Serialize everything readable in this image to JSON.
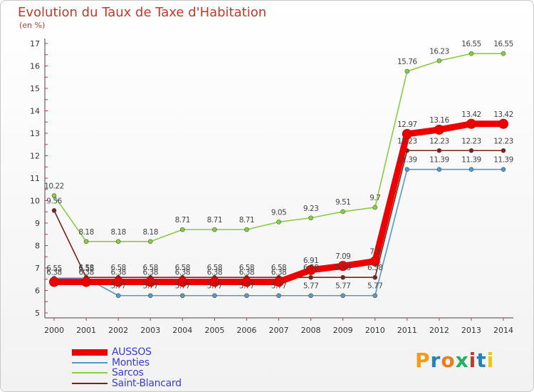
{
  "title": "Evolution du Taux de Taxe d'Habitation",
  "unit_label": "(en %)",
  "logo": {
    "text": "Proxiti",
    "letters": [
      "P",
      "r",
      "o",
      "x",
      "i",
      "t",
      "i"
    ],
    "colors": [
      "#f39c12",
      "#2980b9",
      "#e67e22",
      "#27ae60",
      "#c0392b",
      "#2980b9",
      "#f1c40f"
    ]
  },
  "chart_data": {
    "type": "line",
    "title": "Evolution du Taux de Taxe d'Habitation",
    "ylabel": "(en %)",
    "xlabel": "",
    "x": [
      "2000",
      "2001",
      "2002",
      "2003",
      "2004",
      "2005",
      "2006",
      "2007",
      "2008",
      "2009",
      "2010",
      "2011",
      "2012",
      "2013",
      "2014"
    ],
    "ylim": [
      5,
      17
    ],
    "yticks": [
      5,
      6,
      7,
      8,
      9,
      10,
      11,
      12,
      13,
      14,
      15,
      16,
      17
    ],
    "legend_position": "bottom-left",
    "series": [
      {
        "name": "AUSSOS",
        "color": "#ee0000",
        "style": "thick",
        "values": [
          6.38,
          6.38,
          6.38,
          6.38,
          6.38,
          6.38,
          6.38,
          6.38,
          6.91,
          7.09,
          7.3,
          12.97,
          13.16,
          13.42,
          13.42
        ],
        "labels": [
          "6.38",
          "6.38",
          "6.38",
          "6.38",
          "6.38",
          "6.38",
          "6.38",
          "6.38",
          "6.91",
          "7.09",
          "7.3",
          "12.97",
          "13.16",
          "13.42",
          "13.42"
        ]
      },
      {
        "name": "Monties",
        "color": "#5599cc",
        "style": "thin",
        "values": [
          6.55,
          6.55,
          5.77,
          5.77,
          5.77,
          5.77,
          5.77,
          5.77,
          5.77,
          5.77,
          5.77,
          11.39,
          11.39,
          11.39,
          11.39
        ],
        "labels": [
          "6.55",
          "6.55",
          "5.77",
          "5.77",
          "5.77",
          "5.77",
          "5.77",
          "5.77",
          "5.77",
          "5.77",
          "5.77",
          "11.39",
          "11.39",
          "11.39",
          "11.39"
        ]
      },
      {
        "name": "Sarcos",
        "color": "#88cc44",
        "style": "thin",
        "values": [
          10.22,
          8.18,
          8.18,
          8.18,
          8.71,
          8.71,
          8.71,
          9.05,
          9.23,
          9.51,
          9.7,
          15.76,
          16.23,
          16.55,
          16.55
        ],
        "labels": [
          "10.22",
          "8.18",
          "8.18",
          "8.18",
          "8.71",
          "8.71",
          "8.71",
          "9.05",
          "9.23",
          "9.51",
          "9.7",
          "15.76",
          "16.23",
          "16.55",
          "16.55"
        ]
      },
      {
        "name": "Saint-Blancard",
        "color": "#7a2020",
        "style": "thin",
        "values": [
          9.56,
          6.58,
          6.58,
          6.58,
          6.58,
          6.58,
          6.58,
          6.58,
          6.58,
          6.58,
          6.58,
          12.23,
          12.23,
          12.23,
          12.23
        ],
        "labels": [
          "9.56",
          "6.58",
          "6.58",
          "6.58",
          "6.58",
          "6.58",
          "6.58",
          "6.58",
          "6.58",
          "6.58",
          "6.58",
          "12.23",
          "12.23",
          "12.23",
          "12.23"
        ]
      }
    ]
  }
}
